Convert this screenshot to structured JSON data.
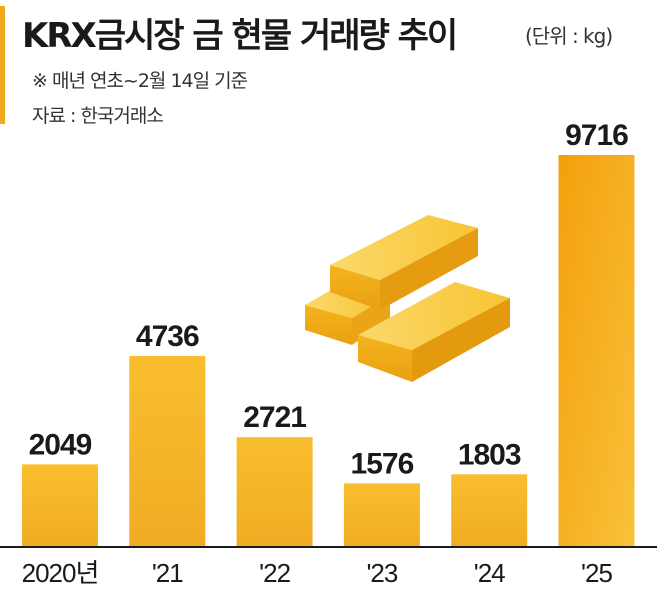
{
  "header": {
    "title": "KRX금시장 금 현물 거래량 추이",
    "unit": "(단위 : kg)",
    "note": "※ 매년 연초~2월 14일 기준",
    "source": "자료 : 한국거래소"
  },
  "colors": {
    "accent": "#f2a81d",
    "bar_top": "#f9be2f",
    "bar_bottom": "#f0ac24",
    "bar_highlight": "#f6a410",
    "axis": "#1a1a1a"
  },
  "illustration": {
    "icon": "gold-bars-icon"
  },
  "chart_data": {
    "type": "bar",
    "title": "KRX금시장 금 현물 거래량 추이",
    "unit": "kg",
    "categories": [
      "2020년",
      "'21",
      "'22",
      "'23",
      "'24",
      "'25"
    ],
    "values": [
      2049,
      4736,
      2721,
      1576,
      1803,
      9716
    ],
    "data_labels": [
      "2049",
      "4736",
      "2721",
      "1576",
      "1803",
      "9716"
    ],
    "ylim": [
      0,
      9716
    ],
    "grid": false,
    "legend": "none"
  }
}
